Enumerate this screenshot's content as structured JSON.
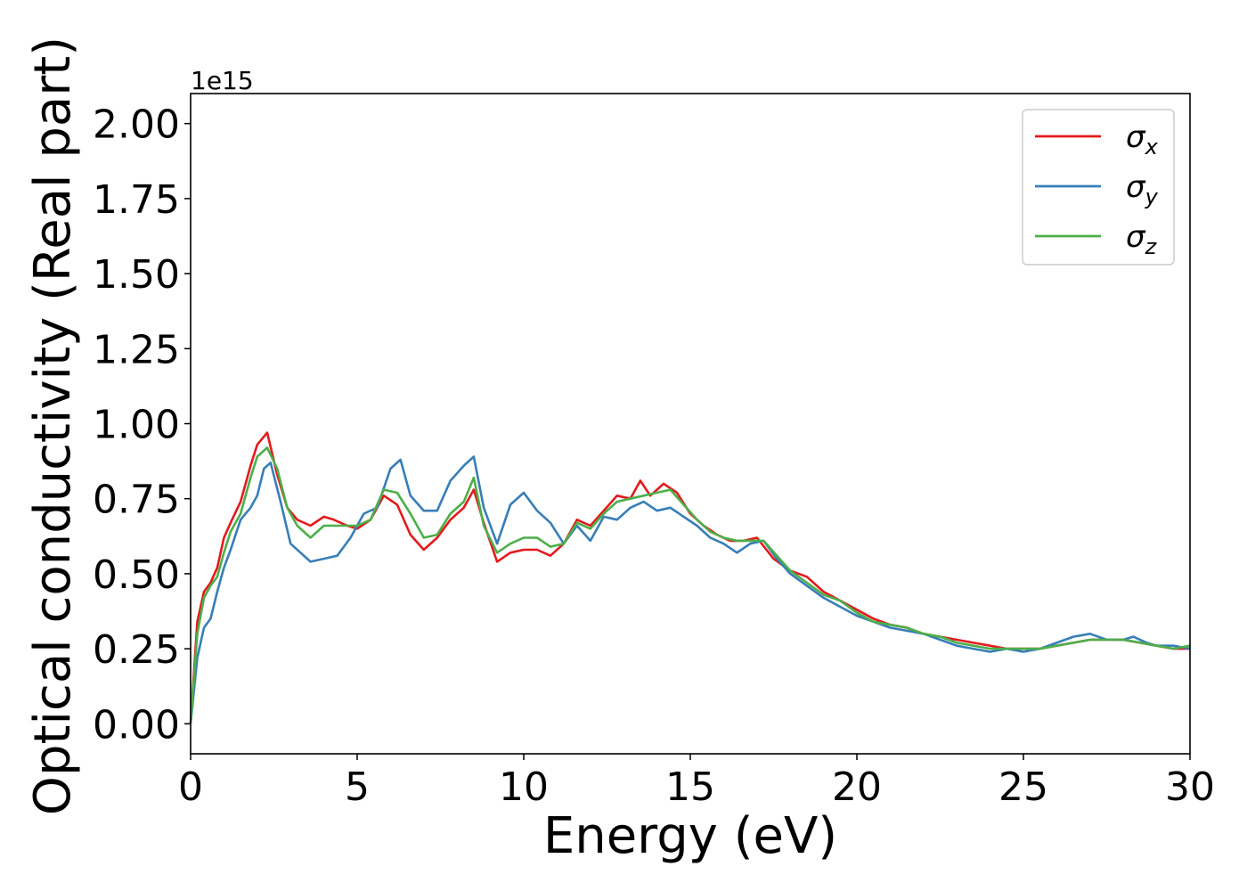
{
  "chart_data": {
    "type": "line",
    "title": "",
    "xlabel": "Energy (eV)",
    "ylabel": "Optical conductivity (Real part)",
    "y_offset_text": "1e15",
    "xlim": [
      0,
      30
    ],
    "ylim": [
      -0.1,
      2.1
    ],
    "x_ticks": [
      0,
      5,
      10,
      15,
      20,
      25,
      30
    ],
    "x_tick_labels": [
      "0",
      "5",
      "10",
      "15",
      "20",
      "25",
      "30"
    ],
    "y_ticks": [
      0,
      0.25,
      0.5,
      0.75,
      1.0,
      1.25,
      1.5,
      1.75,
      2.0
    ],
    "y_tick_labels": [
      "0.00",
      "0.25",
      "0.50",
      "0.75",
      "1.00",
      "1.25",
      "1.50",
      "1.75",
      "2.00"
    ],
    "grid": false,
    "legend_position": "top-right",
    "series": [
      {
        "name": "σx",
        "symbol": "σ",
        "subscript": "x",
        "color": "#e41a1c",
        "x": [
          0,
          0.2,
          0.4,
          0.6,
          0.8,
          1.0,
          1.2,
          1.5,
          1.8,
          2.0,
          2.3,
          2.6,
          2.9,
          3.2,
          3.6,
          4.0,
          4.3,
          4.7,
          5.0,
          5.4,
          5.8,
          6.2,
          6.6,
          7.0,
          7.4,
          7.8,
          8.2,
          8.5,
          8.8,
          9.2,
          9.6,
          10.0,
          10.4,
          10.8,
          11.2,
          11.6,
          12.0,
          12.4,
          12.8,
          13.2,
          13.5,
          13.8,
          14.2,
          14.6,
          15.0,
          15.4,
          15.8,
          16.2,
          16.6,
          17.0,
          17.5,
          18.0,
          18.5,
          19.0,
          19.5,
          20.0,
          20.5,
          21.0,
          21.5,
          22.0,
          22.5,
          23.0,
          23.5,
          24.0,
          24.5,
          25.0,
          25.5,
          26.0,
          26.5,
          27.0,
          27.5,
          28.0,
          28.5,
          29.0,
          29.5,
          30.0
        ],
        "y": [
          0.0,
          0.34,
          0.44,
          0.47,
          0.52,
          0.62,
          0.67,
          0.74,
          0.86,
          0.93,
          0.97,
          0.83,
          0.72,
          0.68,
          0.66,
          0.69,
          0.68,
          0.66,
          0.65,
          0.68,
          0.76,
          0.73,
          0.63,
          0.58,
          0.62,
          0.68,
          0.72,
          0.78,
          0.67,
          0.54,
          0.57,
          0.58,
          0.58,
          0.56,
          0.6,
          0.68,
          0.66,
          0.71,
          0.76,
          0.75,
          0.81,
          0.76,
          0.8,
          0.77,
          0.7,
          0.66,
          0.63,
          0.61,
          0.61,
          0.62,
          0.55,
          0.51,
          0.49,
          0.44,
          0.41,
          0.38,
          0.35,
          0.33,
          0.32,
          0.3,
          0.29,
          0.28,
          0.27,
          0.26,
          0.25,
          0.25,
          0.25,
          0.26,
          0.27,
          0.28,
          0.28,
          0.28,
          0.27,
          0.26,
          0.25,
          0.25
        ]
      },
      {
        "name": "σy",
        "symbol": "σ",
        "subscript": "y",
        "color": "#377eb8",
        "x": [
          0,
          0.2,
          0.4,
          0.6,
          0.8,
          1.0,
          1.2,
          1.5,
          1.8,
          2.0,
          2.2,
          2.4,
          2.7,
          3.0,
          3.3,
          3.6,
          4.0,
          4.4,
          4.8,
          5.2,
          5.6,
          6.0,
          6.3,
          6.6,
          7.0,
          7.4,
          7.8,
          8.2,
          8.5,
          8.8,
          9.2,
          9.6,
          10.0,
          10.4,
          10.8,
          11.2,
          11.6,
          12.0,
          12.4,
          12.8,
          13.2,
          13.6,
          14.0,
          14.4,
          14.8,
          15.2,
          15.6,
          16.0,
          16.4,
          16.8,
          17.2,
          17.6,
          18.0,
          18.5,
          19.0,
          19.5,
          20.0,
          20.5,
          21.0,
          21.5,
          22.0,
          22.5,
          23.0,
          23.5,
          24.0,
          24.5,
          25.0,
          25.5,
          26.0,
          26.5,
          27.0,
          27.5,
          28.0,
          28.3,
          28.7,
          29.0,
          29.5,
          30.0
        ],
        "y": [
          0.0,
          0.22,
          0.32,
          0.35,
          0.44,
          0.52,
          0.58,
          0.68,
          0.72,
          0.76,
          0.85,
          0.87,
          0.74,
          0.6,
          0.57,
          0.54,
          0.55,
          0.56,
          0.62,
          0.7,
          0.72,
          0.85,
          0.88,
          0.76,
          0.71,
          0.71,
          0.81,
          0.86,
          0.89,
          0.72,
          0.6,
          0.73,
          0.77,
          0.71,
          0.67,
          0.6,
          0.66,
          0.61,
          0.69,
          0.68,
          0.72,
          0.74,
          0.71,
          0.72,
          0.69,
          0.66,
          0.62,
          0.6,
          0.57,
          0.6,
          0.61,
          0.55,
          0.5,
          0.46,
          0.42,
          0.39,
          0.36,
          0.34,
          0.32,
          0.31,
          0.3,
          0.28,
          0.26,
          0.25,
          0.24,
          0.25,
          0.24,
          0.25,
          0.27,
          0.29,
          0.3,
          0.28,
          0.28,
          0.29,
          0.27,
          0.26,
          0.26,
          0.25
        ]
      },
      {
        "name": "σz",
        "symbol": "σ",
        "subscript": "z",
        "color": "#4daf4a",
        "x": [
          0,
          0.2,
          0.4,
          0.6,
          0.8,
          1.0,
          1.2,
          1.5,
          1.8,
          2.0,
          2.3,
          2.6,
          2.9,
          3.2,
          3.6,
          4.0,
          4.3,
          4.7,
          5.0,
          5.4,
          5.8,
          6.2,
          6.6,
          7.0,
          7.4,
          7.8,
          8.2,
          8.5,
          8.8,
          9.2,
          9.6,
          10.0,
          10.4,
          10.8,
          11.2,
          11.6,
          12.0,
          12.4,
          12.8,
          13.2,
          13.6,
          14.0,
          14.4,
          14.8,
          15.2,
          15.6,
          16.0,
          16.4,
          16.8,
          17.2,
          17.6,
          18.0,
          18.5,
          19.0,
          19.5,
          20.0,
          20.5,
          21.0,
          21.5,
          22.0,
          22.5,
          23.0,
          23.5,
          24.0,
          24.5,
          25.0,
          25.5,
          26.0,
          26.5,
          27.0,
          27.5,
          28.0,
          28.5,
          29.0,
          29.5,
          30.0
        ],
        "y": [
          0.0,
          0.3,
          0.42,
          0.46,
          0.49,
          0.57,
          0.64,
          0.7,
          0.82,
          0.89,
          0.92,
          0.85,
          0.72,
          0.66,
          0.62,
          0.66,
          0.66,
          0.66,
          0.66,
          0.68,
          0.78,
          0.77,
          0.7,
          0.62,
          0.63,
          0.7,
          0.74,
          0.82,
          0.66,
          0.57,
          0.6,
          0.62,
          0.62,
          0.59,
          0.6,
          0.67,
          0.65,
          0.7,
          0.74,
          0.75,
          0.76,
          0.77,
          0.78,
          0.73,
          0.68,
          0.64,
          0.62,
          0.61,
          0.61,
          0.61,
          0.56,
          0.51,
          0.47,
          0.43,
          0.41,
          0.37,
          0.34,
          0.33,
          0.32,
          0.3,
          0.29,
          0.27,
          0.26,
          0.25,
          0.25,
          0.25,
          0.25,
          0.26,
          0.27,
          0.28,
          0.28,
          0.28,
          0.27,
          0.26,
          0.25,
          0.26
        ]
      }
    ]
  }
}
